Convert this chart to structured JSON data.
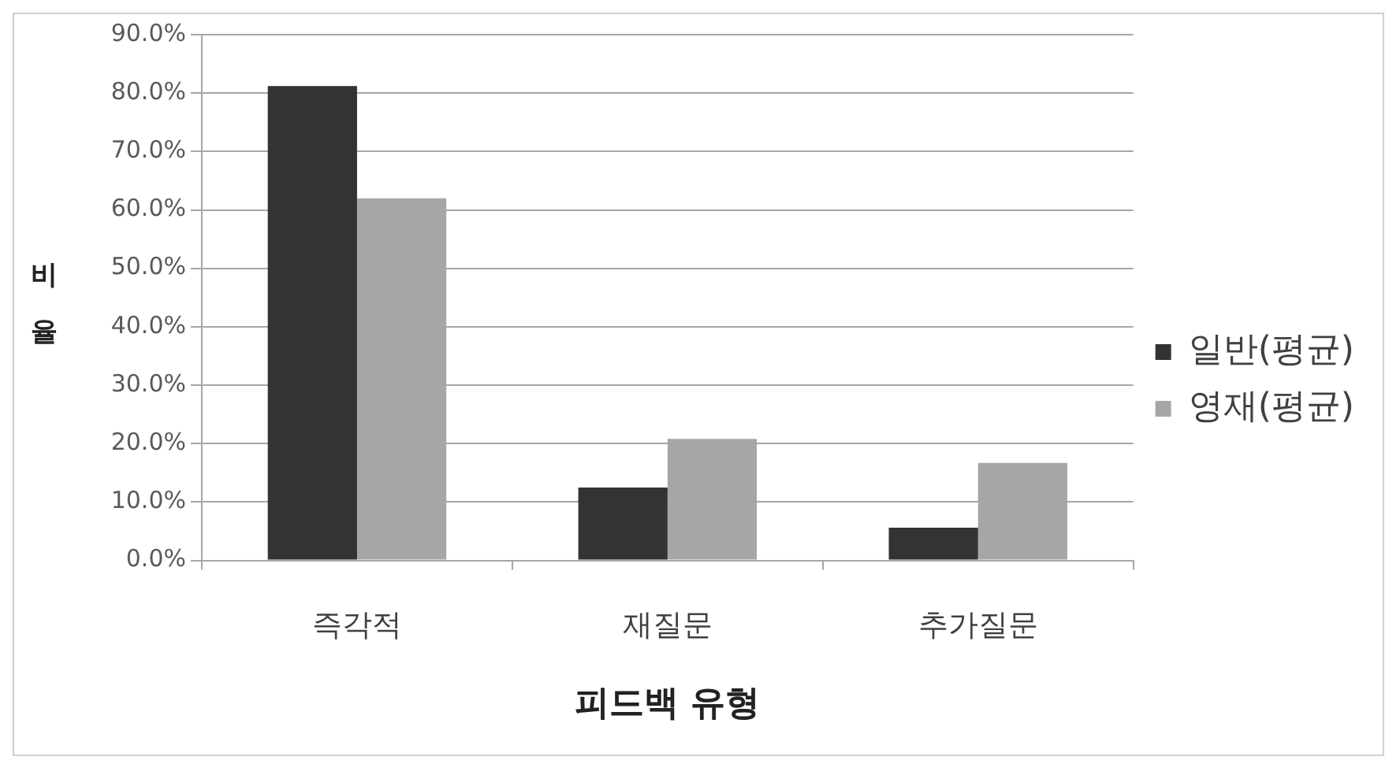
{
  "chart_data": {
    "type": "bar",
    "xlabel": "피드백 유형",
    "ylabel": "비율",
    "categories": [
      "즉각적",
      "재질문",
      "추가질문"
    ],
    "series": [
      {
        "name": "일반(평균)",
        "color": "#333333",
        "values": [
          81.2,
          12.5,
          5.6
        ]
      },
      {
        "name": "영재(평균)",
        "color": "#a6a6a6",
        "values": [
          62.0,
          20.8,
          16.7
        ]
      }
    ],
    "ylim": [
      0,
      90
    ],
    "yticks": [
      {
        "value": 0,
        "label": "0.0%"
      },
      {
        "value": 10,
        "label": "10.0%"
      },
      {
        "value": 20,
        "label": "20.0%"
      },
      {
        "value": 30,
        "label": "30.0%"
      },
      {
        "value": 40,
        "label": "40.0%"
      },
      {
        "value": 50,
        "label": "50.0%"
      },
      {
        "value": 60,
        "label": "60.0%"
      },
      {
        "value": 70,
        "label": "70.0%"
      },
      {
        "value": 80,
        "label": "80.0%"
      },
      {
        "value": 90,
        "label": "90.0%"
      }
    ],
    "grid": "y",
    "legend": "right"
  }
}
